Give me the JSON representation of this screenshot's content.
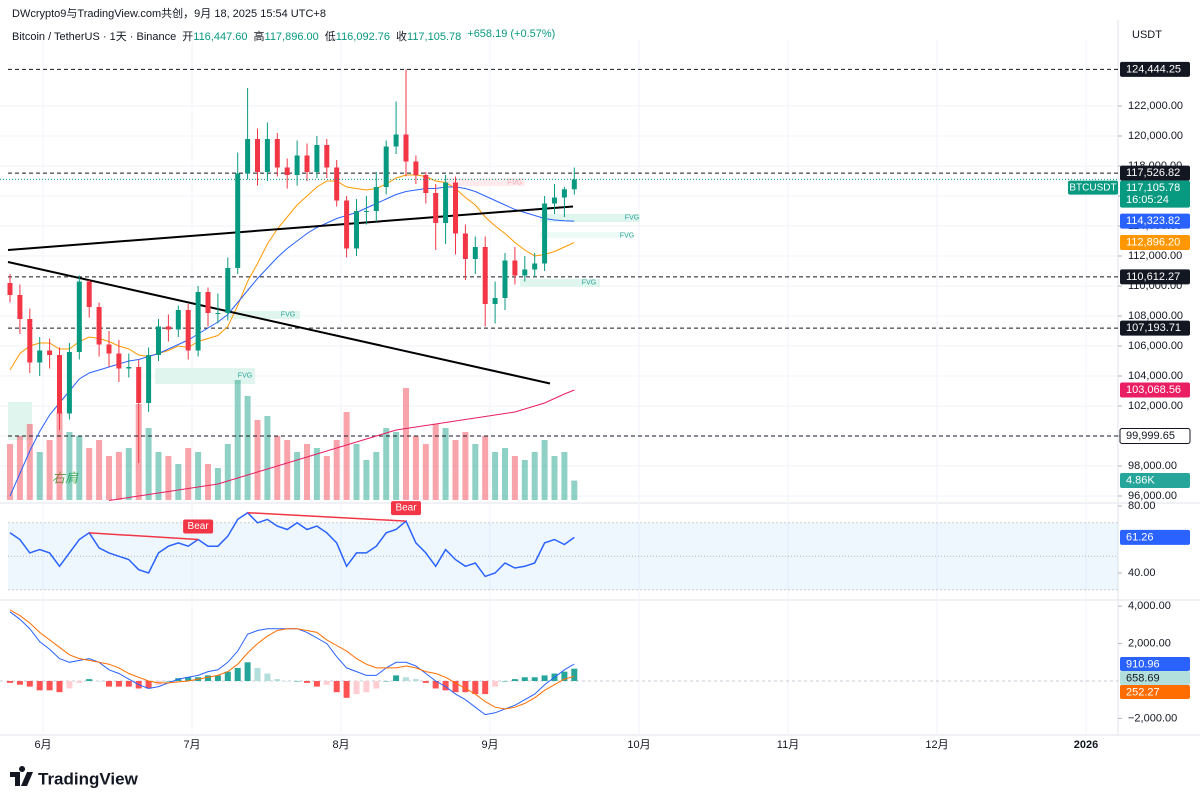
{
  "header": {
    "attribution": "DWcrypto9与TradingView.com共创，9月 18, 2025 15:54 UTC+8",
    "symbol": "Bitcoin / TetherUS · 1天 · Binance",
    "ohlc": [
      {
        "label": "开",
        "value": "116,447.60"
      },
      {
        "label": "高",
        "value": "117,896.00"
      },
      {
        "label": "低",
        "value": "116,092.76"
      },
      {
        "label": "收",
        "value": "117,105.78"
      }
    ],
    "change": "+658.19 (+0.57%)",
    "currency": "USDT"
  },
  "footer": {
    "brand": "TradingView"
  },
  "chart_data": [
    {
      "type": "candlestick",
      "xticks": [
        "6月",
        "7月",
        "8月",
        "9月",
        "10月",
        "11月",
        "12月",
        "2026"
      ],
      "ylim": [
        95533,
        126400
      ],
      "yticks": [
        {
          "value": 96000,
          "label": "96,000.00"
        },
        {
          "value": 98000,
          "label": "98,000.00"
        },
        {
          "value": 100000,
          "label": "100,000.00"
        },
        {
          "value": 102000,
          "label": "102,000.00"
        },
        {
          "value": 104000,
          "label": "104,000.00"
        },
        {
          "value": 106000,
          "label": "106,000.00"
        },
        {
          "value": 108000,
          "label": "108,000.00"
        },
        {
          "value": 110000,
          "label": "110,000.00"
        },
        {
          "value": 112000,
          "label": "112,000.00"
        },
        {
          "value": 114000,
          "label": "114,000.00"
        },
        {
          "value": 116000,
          "label": "116,000.00"
        },
        {
          "value": 118000,
          "label": "118,000.00"
        },
        {
          "value": 120000,
          "label": "120,000.00"
        },
        {
          "value": 122000,
          "label": "122,000.00"
        }
      ],
      "grid": true,
      "up_color": "#089981",
      "down_color": "#f23645",
      "open": [
        110200,
        109400,
        107800,
        104900,
        105700,
        105400,
        101500,
        105600,
        110300,
        108600,
        106100,
        105500,
        104500,
        104600,
        102200,
        105400,
        107300,
        107100,
        108400,
        105700,
        109600,
        108200,
        108200,
        111200,
        117500,
        119800,
        117600,
        119800,
        117900,
        117400,
        118700,
        117600,
        119400,
        117900,
        115700,
        112500,
        115000,
        115000,
        116600,
        119300,
        120100,
        118300,
        117400,
        116200,
        114200,
        116900,
        113500,
        111800,
        112600,
        108800,
        109200,
        111700,
        110700,
        111100,
        111500,
        115500,
        115900,
        116447.6
      ],
      "high": [
        110800,
        110100,
        108500,
        106600,
        106500,
        105900,
        106200,
        110700,
        110400,
        108900,
        107000,
        106400,
        105500,
        105100,
        105900,
        107800,
        108100,
        108700,
        108800,
        110000,
        109900,
        109500,
        111900,
        118900,
        123200,
        120500,
        120900,
        120200,
        118500,
        119700,
        119500,
        120000,
        119800,
        118400,
        116000,
        115800,
        116000,
        117600,
        119700,
        122300,
        124444.25,
        118700,
        117600,
        116800,
        117400,
        117300,
        114100,
        113300,
        113300,
        110300,
        112200,
        112600,
        112000,
        112200,
        116000,
        116800,
        116600,
        117896
      ],
      "low": [
        108900,
        106800,
        104200,
        104000,
        104500,
        100400,
        101100,
        105100,
        107900,
        105300,
        104600,
        103600,
        103900,
        98200,
        101600,
        105000,
        106300,
        106600,
        105100,
        105300,
        107300,
        107500,
        107700,
        110800,
        117100,
        116700,
        117000,
        117300,
        116500,
        116700,
        117000,
        117200,
        117200,
        115300,
        111900,
        112000,
        114100,
        114300,
        116100,
        118800,
        117300,
        116800,
        115500,
        112400,
        112800,
        112100,
        110400,
        110800,
        107300,
        107500,
        108400,
        110100,
        110300,
        110600,
        111000,
        114800,
        114600,
        116092.76
      ],
      "close": [
        109400,
        107800,
        104900,
        105700,
        105400,
        101500,
        105600,
        110300,
        108600,
        106100,
        105500,
        104500,
        104600,
        102200,
        105400,
        107300,
        107100,
        108400,
        105700,
        109600,
        108200,
        108200,
        111200,
        117500,
        119800,
        117600,
        119800,
        117900,
        117400,
        118700,
        117600,
        119400,
        117900,
        115700,
        112500,
        115000,
        115000,
        116600,
        119300,
        120100,
        118300,
        117400,
        116200,
        114200,
        116900,
        113500,
        111800,
        112600,
        108800,
        109200,
        111700,
        110700,
        111100,
        111500,
        115500,
        115900,
        116447.6,
        117105.78
      ],
      "volume": {
        "ylim": [
          0,
          45000
        ],
        "last_label": "4.86K",
        "values": [
          14000,
          16000,
          19000,
          12000,
          15000,
          22000,
          17000,
          16000,
          13000,
          15000,
          11000,
          12000,
          13000,
          24000,
          18000,
          12000,
          11000,
          9000,
          13000,
          12000,
          9000,
          8000,
          14000,
          30000,
          26000,
          20000,
          21000,
          16000,
          15000,
          12000,
          14000,
          13000,
          11000,
          15000,
          22000,
          14000,
          10000,
          12000,
          18000,
          17000,
          28000,
          16000,
          14000,
          19000,
          18000,
          15000,
          17000,
          14000,
          16000,
          12000,
          13000,
          11000,
          10000,
          12000,
          15000,
          11000,
          12000,
          4860
        ]
      },
      "lines": [
        {
          "color": "#ff9800",
          "last_label": "112,896.20",
          "values": [
            104400,
            105500,
            106000,
            106200,
            106200,
            105800,
            105800,
            106300,
            106600,
            106500,
            106300,
            106000,
            105800,
            105400,
            105300,
            105500,
            105700,
            106000,
            105900,
            106300,
            106500,
            106700,
            107300,
            108700,
            110300,
            111500,
            112800,
            113800,
            114600,
            115400,
            116000,
            116600,
            117000,
            117000,
            116600,
            116500,
            116400,
            116500,
            116800,
            117200,
            117400,
            117400,
            117300,
            117000,
            116900,
            116500,
            115900,
            115400,
            114600,
            114000,
            113500,
            112900,
            112400,
            112000,
            112100,
            112300,
            112600,
            112896.2
          ]
        },
        {
          "color": "#2962ff",
          "last_label": "114,323.82",
          "values": [
            96000,
            97500,
            99000,
            100300,
            101400,
            102200,
            103000,
            103800,
            104200,
            104400,
            104600,
            104800,
            105000,
            105100,
            105300,
            105500,
            105800,
            106100,
            106400,
            106800,
            107200,
            107600,
            108100,
            108900,
            109700,
            110500,
            111200,
            111900,
            112500,
            113000,
            113500,
            113900,
            114200,
            114500,
            114700,
            114900,
            115200,
            115500,
            115800,
            116100,
            116300,
            116400,
            116500,
            116500,
            116600,
            116600,
            116500,
            116300,
            116000,
            115700,
            115400,
            115100,
            114900,
            114700,
            114500,
            114400,
            114350,
            114323.82
          ]
        },
        {
          "color": "#e91e63",
          "last_label": "103,068.56",
          "values": [
            null,
            null,
            null,
            null,
            null,
            null,
            null,
            null,
            null,
            null,
            95700,
            95800,
            95900,
            96000,
            96100,
            96200,
            96300,
            96400,
            96500,
            96600,
            96700,
            96800,
            97000,
            97200,
            97400,
            97600,
            97800,
            98000,
            98200,
            98400,
            98600,
            98800,
            99000,
            99200,
            99400,
            99600,
            99800,
            100000,
            100200,
            100400,
            100500,
            100600,
            100700,
            100800,
            100900,
            101000,
            101100,
            101200,
            101300,
            101400,
            101500,
            101600,
            101800,
            102000,
            102200,
            102500,
            102800,
            103068.56
          ]
        }
      ],
      "levels": [
        {
          "value": 124444.25,
          "label": "124,444.25",
          "color": "#131722"
        },
        {
          "value": 117526.82,
          "label": "117,526.82",
          "color": "#131722"
        },
        {
          "value": 110612.27,
          "label": "110,612.27",
          "color": "#131722"
        },
        {
          "value": 107193.71,
          "label": "107,193.71",
          "color": "#131722"
        },
        {
          "value": 99999.65,
          "label": "99,999.65",
          "color": "#ffffff"
        }
      ],
      "trendlines": [
        {
          "start": 112400,
          "end": 115300
        },
        {
          "start": 111600,
          "end": 103500
        }
      ],
      "last_price": {
        "symbol": "BTCUSDT",
        "label": "117,105.78",
        "countdown": "16:05:24",
        "color": "#089981"
      },
      "annotations": [
        "FVG",
        "FVG",
        "FVG",
        "FVG",
        "FVG",
        "FVG",
        "右肩"
      ]
    },
    {
      "type": "line",
      "ylim": [
        23.9,
        81.8
      ],
      "yticks": [
        {
          "value": 40,
          "label": "40.00"
        },
        {
          "value": 80,
          "label": "80.00"
        }
      ],
      "band": [
        30,
        70
      ],
      "midline": 50,
      "color": "#2962ff",
      "last_label": "61.26",
      "values": [
        64,
        60,
        52,
        54,
        52,
        44,
        52,
        60,
        64,
        55,
        52,
        50,
        48,
        42,
        40,
        52,
        56,
        58,
        56,
        60,
        56,
        56,
        62,
        72,
        76,
        70,
        72,
        68,
        66,
        70,
        66,
        68,
        64,
        58,
        44,
        52,
        52,
        56,
        64,
        66,
        71,
        58,
        52,
        44,
        54,
        48,
        44,
        46,
        38,
        40,
        46,
        43,
        44,
        46,
        58,
        60,
        57,
        61.26
      ],
      "divergences": [
        "Bear",
        "Bear"
      ]
    },
    {
      "type": "macd",
      "ylim": [
        -2889,
        4333
      ],
      "yticks": [
        {
          "value": 4000,
          "label": "4,000.00"
        },
        {
          "value": 2000,
          "label": "2,000.00"
        },
        {
          "value": -2000,
          "label": "−2,000.00"
        }
      ],
      "hist_colors": [
        "#26a69a",
        "#b2dfdb",
        "#ff5252",
        "#ffcdd2"
      ],
      "macd": {
        "color": "#2962ff",
        "last_label": "910.96",
        "values": [
          3700,
          3300,
          2800,
          2100,
          1700,
          1200,
          1000,
          1100,
          1200,
          1000,
          600,
          400,
          100,
          -200,
          -400,
          -300,
          -100,
          100,
          200,
          300,
          500,
          600,
          1000,
          1600,
          2500,
          2700,
          2800,
          2800,
          2800,
          2800,
          2600,
          2300,
          2000,
          1300,
          700,
          500,
          300,
          300,
          700,
          1000,
          1000,
          800,
          400,
          0,
          -300,
          -700,
          -1000,
          -1400,
          -1800,
          -1700,
          -1500,
          -1300,
          -1000,
          -700,
          -200,
          200,
          600,
          910.96
        ]
      },
      "signal": {
        "color": "#ff6d00",
        "last_label": "252.27",
        "values": [
          3800,
          3500,
          3100,
          2600,
          2200,
          1800,
          1400,
          1200,
          1100,
          1000,
          900,
          700,
          400,
          200,
          0,
          -100,
          -100,
          -50,
          0,
          100,
          200,
          300,
          500,
          900,
          1500,
          2000,
          2400,
          2700,
          2800,
          2800,
          2700,
          2600,
          2200,
          1900,
          1600,
          1200,
          900,
          700,
          700,
          700,
          800,
          700,
          500,
          400,
          200,
          -100,
          -400,
          -700,
          -1100,
          -1400,
          -1500,
          -1400,
          -1200,
          -900,
          -500,
          -200,
          100,
          252.27
        ]
      },
      "histogram": {
        "last_label": "658.69",
        "values": [
          -100,
          -200,
          -300,
          -500,
          -500,
          -600,
          -400,
          -100,
          100,
          0,
          -300,
          -300,
          -300,
          -400,
          -400,
          -200,
          0,
          150,
          200,
          200,
          300,
          300,
          500,
          700,
          1000,
          700,
          400,
          100,
          0,
          0,
          -100,
          -300,
          -200,
          -600,
          -900,
          -700,
          -600,
          -400,
          0,
          300,
          200,
          100,
          -100,
          -400,
          -500,
          -600,
          -600,
          -700,
          -700,
          -300,
          0,
          100,
          200,
          200,
          300,
          400,
          500,
          658.69
        ]
      }
    }
  ]
}
